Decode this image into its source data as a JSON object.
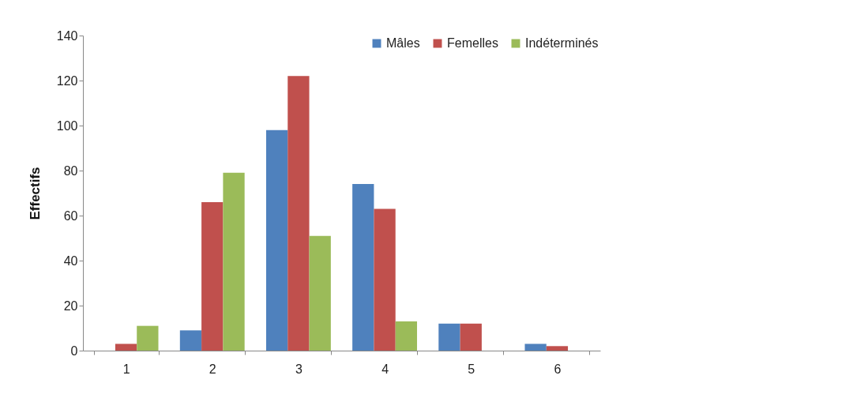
{
  "chart_data": {
    "type": "bar",
    "ylabel": "Effectifs",
    "categories": [
      "1",
      "2",
      "3",
      "4",
      "5",
      "6"
    ],
    "series": [
      {
        "name": "Mâles",
        "color": "#4f81bd",
        "values": [
          0,
          9,
          98,
          74,
          12,
          3
        ]
      },
      {
        "name": "Femelles",
        "color": "#c0504d",
        "values": [
          3,
          66,
          122,
          63,
          12,
          2
        ]
      },
      {
        "name": "Indéterminés",
        "color": "#9bbb59",
        "values": [
          11,
          79,
          51,
          13,
          0,
          0
        ]
      }
    ],
    "ylim": [
      0,
      140
    ],
    "yticks": [
      0,
      20,
      40,
      60,
      80,
      100,
      120,
      140
    ],
    "grid": false,
    "legend": "top right"
  }
}
